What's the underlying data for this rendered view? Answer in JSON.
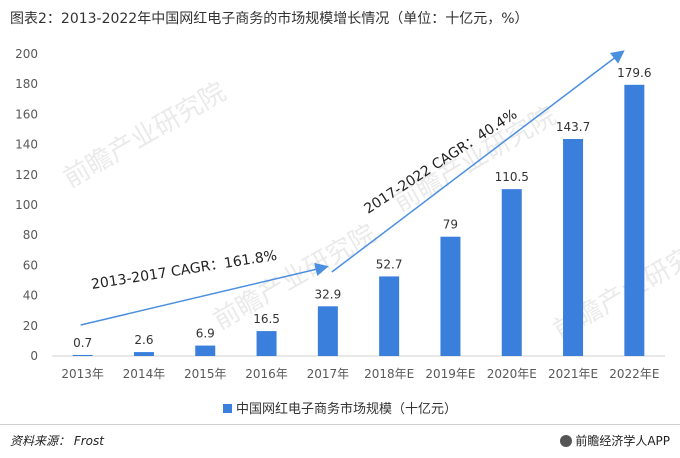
{
  "header": {
    "title": "图表2：2013-2022年中国网红电子商务的市场规模增长情况（单位：十亿元，%）"
  },
  "footer": {
    "source_label": "资料来源：",
    "source_value": "Frost",
    "credit": "前瞻经济学人APP"
  },
  "watermark_text": "前瞻产业研究院",
  "colors": {
    "bar": "#3a7fdc",
    "arrow": "#4a8fe0",
    "axis_text": "#595959"
  },
  "chart_data": {
    "type": "bar",
    "categories": [
      "2013年",
      "2014年",
      "2015年",
      "2016年",
      "2017年",
      "2018年E",
      "2019年E",
      "2020年E",
      "2021年E",
      "2022年E"
    ],
    "series": [
      {
        "name": "中国网红电子商务市场规模（十亿元）",
        "values": [
          0.7,
          2.6,
          6.9,
          16.5,
          32.9,
          52.7,
          79,
          110.5,
          143.7,
          179.6
        ]
      }
    ],
    "value_labels": [
      "0.7",
      "2.6",
      "6.9",
      "16.5",
      "32.9",
      "52.7",
      "79",
      "110.5",
      "143.7",
      "179.6"
    ],
    "ylim": [
      0,
      200
    ],
    "yticks": [
      0,
      20,
      40,
      60,
      80,
      100,
      120,
      140,
      160,
      180,
      200
    ],
    "grid": false,
    "legend_position": "bottom",
    "annotations": [
      {
        "text": "2013-2017 CAGR：161.8%",
        "from_index": 0,
        "to_index": 4
      },
      {
        "text": "2017-2022 CAGR：40.4%",
        "from_index": 4,
        "to_index": 9
      }
    ]
  }
}
